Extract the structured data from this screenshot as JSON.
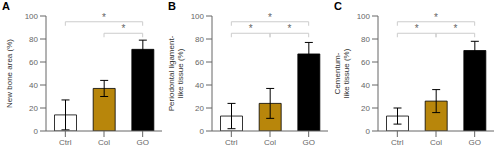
{
  "chart_data": [
    {
      "type": "bar",
      "title": "A",
      "y_label": "New bone area (%)",
      "categories": [
        "Ctrl",
        "Col",
        "GO"
      ],
      "values": [
        14,
        37,
        71
      ],
      "errors": [
        13,
        7,
        8
      ],
      "colors": [
        "white",
        "#B8860B",
        "black"
      ],
      "ylim": [
        0,
        100
      ],
      "yticks": [
        0,
        20,
        40,
        60,
        80,
        100
      ],
      "annotations": [
        {
          "from": "Ctrl",
          "to": "GO",
          "y": 95,
          "text": "*"
        },
        {
          "from": "Col",
          "to": "GO",
          "y": 85,
          "text": "*"
        }
      ]
    },
    {
      "type": "bar",
      "title": "B",
      "y_label": "Periodontal ligament-\nlike tissue (%)",
      "categories": [
        "Ctrl",
        "Col",
        "GO"
      ],
      "values": [
        13,
        24,
        67
      ],
      "errors": [
        11,
        13,
        10
      ],
      "colors": [
        "white",
        "#B8860B",
        "black"
      ],
      "ylim": [
        0,
        100
      ],
      "yticks": [
        0,
        20,
        40,
        60,
        80,
        100
      ],
      "annotations": [
        {
          "from": "Ctrl",
          "to": "GO",
          "y": 95,
          "text": "*"
        },
        {
          "from": "Ctrl",
          "to": "Col",
          "y": 85,
          "text": "*"
        },
        {
          "from": "Col",
          "to": "GO",
          "y": 85,
          "text": "*"
        }
      ]
    },
    {
      "type": "bar",
      "title": "C",
      "y_label": "Cementum-\nlike tissue (%)",
      "categories": [
        "Ctrl",
        "Col",
        "GO"
      ],
      "values": [
        13,
        26,
        70
      ],
      "errors": [
        7,
        10,
        8
      ],
      "colors": [
        "white",
        "#B8860B",
        "black"
      ],
      "ylim": [
        0,
        100
      ],
      "yticks": [
        0,
        20,
        40,
        60,
        80,
        100
      ],
      "annotations": [
        {
          "from": "Ctrl",
          "to": "GO",
          "y": 95,
          "text": "*"
        },
        {
          "from": "Ctrl",
          "to": "Col",
          "y": 85,
          "text": "*"
        },
        {
          "from": "Col",
          "to": "GO",
          "y": 85,
          "text": "*"
        }
      ]
    }
  ]
}
